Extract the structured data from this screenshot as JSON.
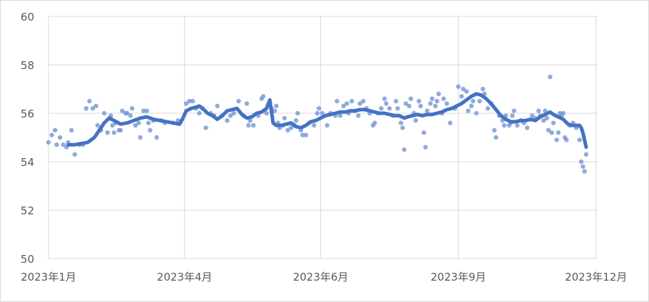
{
  "chart_data": {
    "type": "scatter",
    "title": "",
    "xlabel": "",
    "ylabel": "",
    "ylim": [
      50,
      60
    ],
    "yticks": [
      "50",
      "52",
      "54",
      "56",
      "58",
      "60"
    ],
    "xlim": [
      0,
      335
    ],
    "xticks": [
      {
        "label": "2023年1月",
        "x": 0
      },
      {
        "label": "2023年4月",
        "x": 83
      },
      {
        "label": "2023年6月",
        "x": 166
      },
      {
        "label": "2023年9月",
        "x": 250
      },
      {
        "label": "2023年12月",
        "x": 334
      }
    ],
    "grid": true,
    "colors": {
      "points": "#7396d3",
      "trend": "#4472c4",
      "grid": "#d9d9d9",
      "text": "#595959"
    },
    "series": [
      {
        "name": "daily",
        "kind": "scatter",
        "points": [
          [
            0,
            54.8
          ],
          [
            2,
            55.1
          ],
          [
            4,
            55.3
          ],
          [
            5,
            54.7
          ],
          [
            7,
            55.0
          ],
          [
            9,
            54.7
          ],
          [
            11,
            54.6
          ],
          [
            12,
            54.8
          ],
          [
            14,
            55.3
          ],
          [
            16,
            54.3
          ],
          [
            19,
            54.7
          ],
          [
            21,
            54.7
          ],
          [
            23,
            56.2
          ],
          [
            25,
            56.5
          ],
          [
            27,
            56.2
          ],
          [
            29,
            56.3
          ],
          [
            30,
            55.5
          ],
          [
            32,
            55.3
          ],
          [
            34,
            56.0
          ],
          [
            36,
            55.2
          ],
          [
            38,
            55.9
          ],
          [
            39,
            55.5
          ],
          [
            40,
            55.2
          ],
          [
            41,
            55.6
          ],
          [
            43,
            55.3
          ],
          [
            44,
            55.3
          ],
          [
            45,
            56.1
          ],
          [
            47,
            56.0
          ],
          [
            48,
            56.0
          ],
          [
            50,
            55.9
          ],
          [
            51,
            56.2
          ],
          [
            53,
            55.5
          ],
          [
            55,
            55.6
          ],
          [
            56,
            55.0
          ],
          [
            58,
            56.1
          ],
          [
            60,
            56.1
          ],
          [
            61,
            55.6
          ],
          [
            62,
            55.3
          ],
          [
            64,
            55.7
          ],
          [
            66,
            55.0
          ],
          [
            69,
            55.7
          ],
          [
            71,
            55.6
          ],
          [
            76,
            55.6
          ],
          [
            79,
            55.7
          ],
          [
            84,
            56.4
          ],
          [
            86,
            56.5
          ],
          [
            88,
            56.5
          ],
          [
            90,
            56.2
          ],
          [
            92,
            56.0
          ],
          [
            94,
            56.2
          ],
          [
            96,
            55.4
          ],
          [
            99,
            56.0
          ],
          [
            101,
            55.9
          ],
          [
            103,
            56.3
          ],
          [
            106,
            55.9
          ],
          [
            109,
            55.7
          ],
          [
            111,
            55.9
          ],
          [
            113,
            56.0
          ],
          [
            116,
            56.5
          ],
          [
            119,
            55.9
          ],
          [
            121,
            56.4
          ],
          [
            122,
            55.5
          ],
          [
            123,
            55.7
          ],
          [
            125,
            55.5
          ],
          [
            128,
            55.9
          ],
          [
            130,
            56.6
          ],
          [
            131,
            56.7
          ],
          [
            133,
            56.0
          ],
          [
            136,
            56.2
          ],
          [
            138,
            56.1
          ],
          [
            139,
            56.3
          ],
          [
            140,
            55.6
          ],
          [
            141,
            55.4
          ],
          [
            143,
            55.5
          ],
          [
            144,
            55.8
          ],
          [
            146,
            55.3
          ],
          [
            148,
            55.4
          ],
          [
            150,
            55.5
          ],
          [
            151,
            55.7
          ],
          [
            152,
            56.0
          ],
          [
            154,
            55.3
          ],
          [
            155,
            55.1
          ],
          [
            157,
            55.1
          ],
          [
            159,
            55.6
          ],
          [
            162,
            55.5
          ],
          [
            164,
            56.0
          ],
          [
            165,
            56.2
          ],
          [
            167,
            56.0
          ],
          [
            170,
            55.5
          ],
          [
            172,
            56.0
          ],
          [
            175,
            55.9
          ],
          [
            176,
            56.5
          ],
          [
            178,
            55.9
          ],
          [
            180,
            56.3
          ],
          [
            182,
            56.4
          ],
          [
            183,
            56.0
          ],
          [
            185,
            56.5
          ],
          [
            187,
            56.1
          ],
          [
            189,
            55.9
          ],
          [
            190,
            56.4
          ],
          [
            192,
            56.5
          ],
          [
            194,
            56.2
          ],
          [
            196,
            56.0
          ],
          [
            198,
            55.5
          ],
          [
            199,
            55.6
          ],
          [
            201,
            56.0
          ],
          [
            203,
            56.2
          ],
          [
            205,
            56.6
          ],
          [
            206,
            56.4
          ],
          [
            208,
            56.2
          ],
          [
            210,
            55.9
          ],
          [
            212,
            56.5
          ],
          [
            213,
            56.2
          ],
          [
            215,
            55.6
          ],
          [
            216,
            55.4
          ],
          [
            217,
            54.5
          ],
          [
            218,
            56.4
          ],
          [
            220,
            56.3
          ],
          [
            221,
            56.6
          ],
          [
            223,
            56.0
          ],
          [
            224,
            55.7
          ],
          [
            226,
            56.5
          ],
          [
            227,
            56.3
          ],
          [
            229,
            55.2
          ],
          [
            230,
            54.6
          ],
          [
            231,
            56.1
          ],
          [
            233,
            56.4
          ],
          [
            234,
            56.6
          ],
          [
            236,
            56.3
          ],
          [
            237,
            56.5
          ],
          [
            238,
            56.8
          ],
          [
            240,
            56.0
          ],
          [
            241,
            56.6
          ],
          [
            243,
            56.4
          ],
          [
            245,
            55.6
          ],
          [
            248,
            56.2
          ],
          [
            250,
            57.1
          ],
          [
            252,
            56.7
          ],
          [
            253,
            57.0
          ],
          [
            255,
            56.9
          ],
          [
            256,
            56.1
          ],
          [
            258,
            56.3
          ],
          [
            259,
            56.5
          ],
          [
            261,
            56.0
          ],
          [
            263,
            56.5
          ],
          [
            265,
            57.0
          ],
          [
            266,
            56.8
          ],
          [
            268,
            56.2
          ],
          [
            270,
            56.4
          ],
          [
            272,
            55.3
          ],
          [
            273,
            55.0
          ],
          [
            275,
            55.9
          ],
          [
            277,
            55.7
          ],
          [
            278,
            55.5
          ],
          [
            279,
            55.9
          ],
          [
            281,
            55.5
          ],
          [
            282,
            55.6
          ],
          [
            283,
            55.9
          ],
          [
            284,
            56.1
          ],
          [
            286,
            55.5
          ],
          [
            288,
            55.7
          ],
          [
            290,
            55.6
          ],
          [
            292,
            55.4
          ],
          [
            295,
            55.9
          ],
          [
            297,
            55.8
          ],
          [
            299,
            56.1
          ],
          [
            300,
            55.9
          ],
          [
            302,
            55.7
          ],
          [
            303,
            56.1
          ],
          [
            304,
            55.8
          ],
          [
            305,
            55.3
          ],
          [
            306,
            57.5
          ],
          [
            307,
            55.2
          ],
          [
            308,
            55.6
          ],
          [
            310,
            54.9
          ],
          [
            311,
            55.2
          ],
          [
            312,
            56.0
          ],
          [
            313,
            55.9
          ],
          [
            314,
            56.0
          ],
          [
            315,
            55.0
          ],
          [
            316,
            54.9
          ],
          [
            318,
            55.5
          ],
          [
            320,
            55.6
          ],
          [
            322,
            55.4
          ],
          [
            324,
            54.9
          ],
          [
            325,
            54.0
          ],
          [
            326,
            53.8
          ],
          [
            327,
            53.6
          ],
          [
            328,
            54.3
          ]
        ]
      },
      {
        "name": "trend",
        "kind": "line",
        "points": [
          [
            12,
            54.7
          ],
          [
            16,
            54.7
          ],
          [
            20,
            54.75
          ],
          [
            24,
            54.8
          ],
          [
            28,
            55.0
          ],
          [
            31,
            55.3
          ],
          [
            34,
            55.6
          ],
          [
            37,
            55.8
          ],
          [
            40,
            55.7
          ],
          [
            44,
            55.55
          ],
          [
            48,
            55.6
          ],
          [
            52,
            55.7
          ],
          [
            56,
            55.8
          ],
          [
            60,
            55.85
          ],
          [
            64,
            55.75
          ],
          [
            68,
            55.7
          ],
          [
            72,
            55.65
          ],
          [
            76,
            55.6
          ],
          [
            80,
            55.55
          ],
          [
            82,
            55.8
          ],
          [
            84,
            56.1
          ],
          [
            87,
            56.2
          ],
          [
            90,
            56.25
          ],
          [
            92,
            56.3
          ],
          [
            94,
            56.2
          ],
          [
            97,
            56.0
          ],
          [
            100,
            55.9
          ],
          [
            103,
            55.75
          ],
          [
            106,
            55.9
          ],
          [
            109,
            56.1
          ],
          [
            112,
            56.15
          ],
          [
            115,
            56.2
          ],
          [
            118,
            55.95
          ],
          [
            121,
            55.8
          ],
          [
            124,
            55.85
          ],
          [
            127,
            56.0
          ],
          [
            130,
            56.05
          ],
          [
            133,
            56.2
          ],
          [
            135,
            56.55
          ],
          [
            137,
            55.6
          ],
          [
            139,
            55.5
          ],
          [
            142,
            55.5
          ],
          [
            145,
            55.55
          ],
          [
            148,
            55.6
          ],
          [
            151,
            55.45
          ],
          [
            154,
            55.4
          ],
          [
            157,
            55.5
          ],
          [
            160,
            55.65
          ],
          [
            163,
            55.7
          ],
          [
            166,
            55.8
          ],
          [
            169,
            55.9
          ],
          [
            172,
            55.95
          ],
          [
            175,
            56.0
          ],
          [
            178,
            56.05
          ],
          [
            181,
            56.05
          ],
          [
            184,
            56.1
          ],
          [
            187,
            56.1
          ],
          [
            190,
            56.15
          ],
          [
            193,
            56.15
          ],
          [
            196,
            56.1
          ],
          [
            199,
            56.05
          ],
          [
            202,
            56.0
          ],
          [
            205,
            56.0
          ],
          [
            208,
            55.95
          ],
          [
            211,
            55.9
          ],
          [
            214,
            55.9
          ],
          [
            217,
            55.8
          ],
          [
            219,
            55.85
          ],
          [
            222,
            55.9
          ],
          [
            225,
            55.95
          ],
          [
            228,
            55.9
          ],
          [
            231,
            55.95
          ],
          [
            234,
            55.95
          ],
          [
            237,
            56.0
          ],
          [
            240,
            56.05
          ],
          [
            243,
            56.15
          ],
          [
            246,
            56.2
          ],
          [
            249,
            56.3
          ],
          [
            252,
            56.4
          ],
          [
            255,
            56.55
          ],
          [
            258,
            56.7
          ],
          [
            261,
            56.8
          ],
          [
            264,
            56.75
          ],
          [
            267,
            56.6
          ],
          [
            270,
            56.4
          ],
          [
            273,
            56.15
          ],
          [
            276,
            55.9
          ],
          [
            279,
            55.75
          ],
          [
            282,
            55.65
          ],
          [
            285,
            55.65
          ],
          [
            288,
            55.7
          ],
          [
            291,
            55.7
          ],
          [
            294,
            55.75
          ],
          [
            297,
            55.7
          ],
          [
            300,
            55.85
          ],
          [
            303,
            55.95
          ],
          [
            306,
            56.05
          ],
          [
            308,
            55.95
          ],
          [
            311,
            55.85
          ],
          [
            314,
            55.75
          ],
          [
            317,
            55.55
          ],
          [
            319,
            55.5
          ],
          [
            322,
            55.5
          ],
          [
            324,
            55.5
          ],
          [
            325,
            55.4
          ],
          [
            326,
            55.2
          ],
          [
            327,
            54.9
          ],
          [
            328,
            54.6
          ]
        ]
      }
    ]
  }
}
